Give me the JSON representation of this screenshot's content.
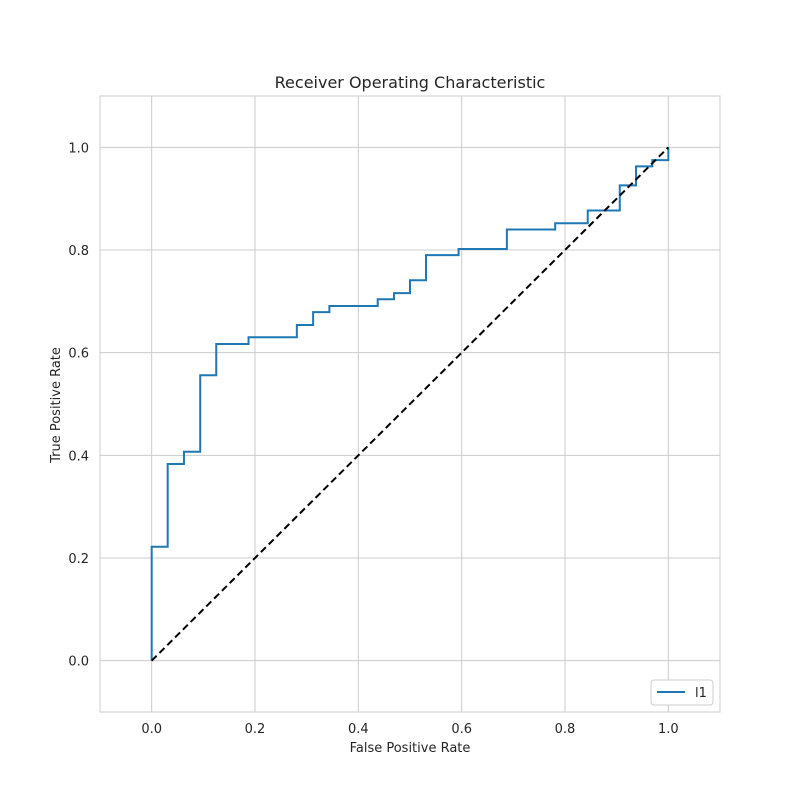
{
  "chart_data": {
    "type": "line",
    "title": "Receiver Operating Characteristic",
    "xlabel": "False Positive Rate",
    "ylabel": "True Positive Rate",
    "xlim": [
      -0.1,
      1.1
    ],
    "ylim": [
      -0.1,
      1.1
    ],
    "xticks": [
      0.0,
      0.2,
      0.4,
      0.6,
      0.8,
      1.0
    ],
    "yticks": [
      0.0,
      0.2,
      0.4,
      0.6,
      0.8,
      1.0
    ],
    "tick_labels": [
      "0.0",
      "0.2",
      "0.4",
      "0.6",
      "0.8",
      "1.0"
    ],
    "grid": true,
    "legend_position": "lower-right",
    "series": [
      {
        "name": "l1",
        "color": "#1f77b4",
        "style": "step",
        "x": [
          0.0,
          0.0,
          0.031,
          0.031,
          0.0625,
          0.0625,
          0.094,
          0.094,
          0.125,
          0.125,
          0.1875,
          0.1875,
          0.281,
          0.281,
          0.3125,
          0.3125,
          0.344,
          0.344,
          0.4375,
          0.4375,
          0.469,
          0.469,
          0.5,
          0.5,
          0.531,
          0.531,
          0.594,
          0.594,
          0.6875,
          0.6875,
          0.781,
          0.781,
          0.844,
          0.844,
          0.906,
          0.906,
          0.9375,
          0.9375,
          0.969,
          0.969,
          1.0,
          1.0
        ],
        "y": [
          0.0,
          0.222,
          0.222,
          0.383,
          0.383,
          0.407,
          0.407,
          0.556,
          0.556,
          0.617,
          0.617,
          0.63,
          0.63,
          0.654,
          0.654,
          0.679,
          0.679,
          0.691,
          0.691,
          0.704,
          0.704,
          0.716,
          0.716,
          0.741,
          0.741,
          0.79,
          0.79,
          0.802,
          0.802,
          0.84,
          0.84,
          0.852,
          0.852,
          0.877,
          0.877,
          0.926,
          0.926,
          0.963,
          0.963,
          0.975,
          0.975,
          1.0
        ]
      },
      {
        "color": "#000000",
        "style": "dashed",
        "x": [
          0.0,
          1.0
        ],
        "y": [
          0.0,
          1.0
        ]
      }
    ]
  }
}
